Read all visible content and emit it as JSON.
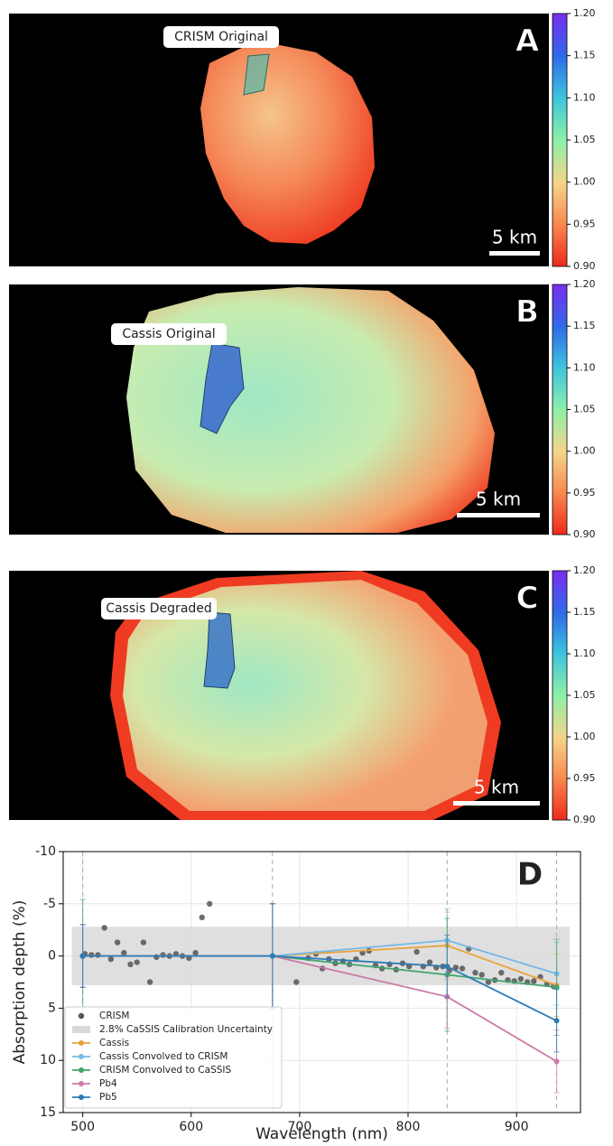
{
  "panels": [
    {
      "letter": "A",
      "label": "CRISM Original",
      "scale_bar": "5 km"
    },
    {
      "letter": "B",
      "label": "Cassis Original",
      "scale_bar": "5 km"
    },
    {
      "letter": "C",
      "label": "Cassis Degraded",
      "scale_bar": "5 km"
    }
  ],
  "colorbar": {
    "clim": [
      0.9,
      1.2
    ],
    "ticks": [
      {
        "value": 1.2,
        "label": "1.20"
      },
      {
        "value": 1.15,
        "label": "1.15"
      },
      {
        "value": 1.1,
        "label": "1.10"
      },
      {
        "value": 1.05,
        "label": "1.05"
      },
      {
        "value": 1.0,
        "label": "1.00"
      },
      {
        "value": 0.95,
        "label": "0.95"
      },
      {
        "value": 0.9,
        "label": "0.90"
      }
    ]
  },
  "chart_data": {
    "type": "line",
    "panel_letter": "D",
    "x_label": "Wavelength (nm)",
    "y_label": "Absorption depth (%)",
    "xlim": [
      482,
      959
    ],
    "ylim": [
      -10,
      15
    ],
    "y_inverted": true,
    "xticks": [
      500,
      600,
      700,
      800,
      900
    ],
    "yticks": [
      -10,
      -5,
      0,
      5,
      10,
      15
    ],
    "grid": true,
    "legend": "lower left",
    "scatter": {
      "name": "CRISM",
      "color": "#555555",
      "x": [
        500,
        502,
        508,
        514,
        520,
        526,
        532,
        538,
        544,
        550,
        556,
        562,
        568,
        574,
        580,
        586,
        592,
        598,
        604,
        610,
        617,
        697,
        708,
        715,
        721,
        727,
        733,
        740,
        746,
        752,
        758,
        764,
        770,
        776,
        783,
        789,
        795,
        801,
        808,
        814,
        820,
        826,
        832,
        838,
        844,
        850,
        856,
        862,
        868,
        874,
        880,
        886,
        892,
        898,
        904,
        910,
        916,
        922,
        928,
        934
      ],
      "values": [
        0,
        -0.2,
        -0.1,
        -0.1,
        -2.7,
        0.3,
        -1.3,
        -0.3,
        0.8,
        0.6,
        -1.3,
        2.5,
        0.1,
        -0.1,
        0,
        -0.2,
        0,
        0.2,
        -0.3,
        -3.7,
        -5.0,
        2.5,
        0.2,
        -0.2,
        1.2,
        0.3,
        0.7,
        0.5,
        0.8,
        0.3,
        -0.3,
        -0.5,
        0.9,
        1.2,
        0.8,
        1.3,
        0.7,
        1.0,
        -0.4,
        1.0,
        0.6,
        1.1,
        1.0,
        1.4,
        1.1,
        1.2,
        -0.7,
        1.6,
        1.8,
        2.5,
        2.3,
        1.6,
        2.3,
        2.4,
        2.2,
        2.5,
        2.4,
        2.0,
        2.7,
        2.9
      ]
    },
    "band": {
      "name": "2.8% CaSSIS Calibration Uncertainty",
      "value": 2.8,
      "color": "#d9d9d9"
    },
    "x": [
      500,
      675,
      836,
      937
    ],
    "series": [
      {
        "name": "Cassis",
        "color": "#e8a33d",
        "values": [
          0,
          0,
          -1.0,
          2.8
        ],
        "errors": [
          3,
          5,
          3.2,
          3
        ]
      },
      {
        "name": "Cassis Convolved to CRISM",
        "color": "#74b9e7",
        "values": [
          0,
          0,
          -1.5,
          1.7
        ],
        "errors": [
          3,
          5,
          3,
          3
        ]
      },
      {
        "name": "CRISM Convolved to CaSSIS",
        "color": "#3fa56e",
        "values": [
          0,
          0,
          1.8,
          3.0
        ],
        "errors": [
          5.4,
          5,
          5.4,
          4.6
        ]
      },
      {
        "name": "Pb4",
        "color": "#cc79a7",
        "values": [
          0,
          0,
          3.9,
          10.1
        ],
        "errors": [
          3,
          5,
          3,
          3
        ]
      },
      {
        "name": "Pb5",
        "color": "#2c7bb6",
        "values": [
          0,
          0,
          1.0,
          6.2
        ],
        "errors": [
          3,
          5,
          3,
          3
        ]
      }
    ]
  }
}
